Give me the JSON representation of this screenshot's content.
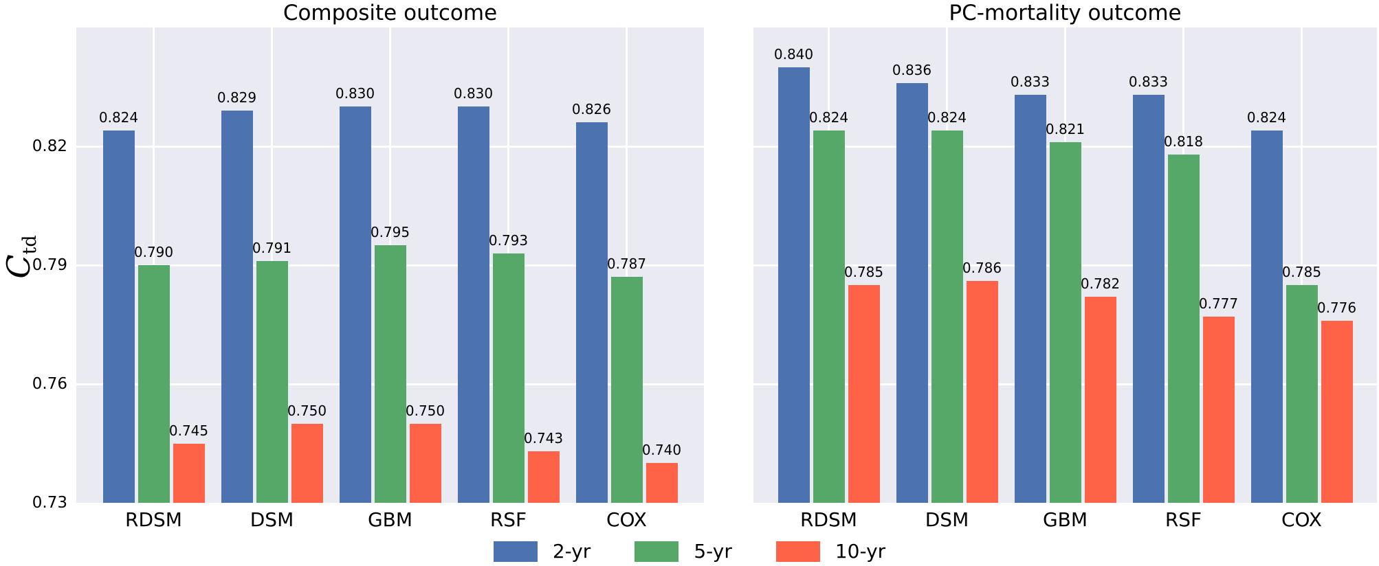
{
  "figure_title": "",
  "colors": {
    "background": "#ffffff",
    "plot_background": "#eaeaf2",
    "gridline": "#ffffff",
    "text": "#000000",
    "series_2yr": "#4c72b0",
    "series_5yr": "#55a868",
    "series_10yr": "#ff6347"
  },
  "ylabel": {
    "text": "C_td",
    "main": "C",
    "sub": "td"
  },
  "legend": {
    "position": "bottom-center",
    "items": [
      {
        "label": "2-yr",
        "color": "#4c72b0"
      },
      {
        "label": "5-yr",
        "color": "#55a868"
      },
      {
        "label": "10-yr",
        "color": "#ff6347"
      }
    ]
  },
  "chart_data": [
    {
      "type": "bar",
      "title": "Composite outcome",
      "xlabel": "",
      "ylabel": "C_td",
      "categories": [
        "RDSM",
        "DSM",
        "GBM",
        "RSF",
        "COX"
      ],
      "series": [
        {
          "name": "2-yr",
          "color": "#4c72b0",
          "values": [
            0.824,
            0.829,
            0.83,
            0.83,
            0.826
          ]
        },
        {
          "name": "5-yr",
          "color": "#55a868",
          "values": [
            0.79,
            0.791,
            0.795,
            0.793,
            0.787
          ]
        },
        {
          "name": "10-yr",
          "color": "#ff6347",
          "values": [
            0.745,
            0.75,
            0.75,
            0.743,
            0.74
          ]
        }
      ],
      "ylim": [
        0.73,
        0.85
      ],
      "yticks": [
        0.73,
        0.76,
        0.79,
        0.82
      ],
      "ytick_labels_visible": true,
      "grid": true,
      "value_labels": true,
      "value_label_decimals": 3,
      "legend_position": "figure-bottom"
    },
    {
      "type": "bar",
      "title": "PC-mortality outcome",
      "xlabel": "",
      "ylabel": "",
      "categories": [
        "RDSM",
        "DSM",
        "GBM",
        "RSF",
        "COX"
      ],
      "series": [
        {
          "name": "2-yr",
          "color": "#4c72b0",
          "values": [
            0.84,
            0.836,
            0.833,
            0.833,
            0.824
          ]
        },
        {
          "name": "5-yr",
          "color": "#55a868",
          "values": [
            0.824,
            0.824,
            0.821,
            0.818,
            0.785
          ]
        },
        {
          "name": "10-yr",
          "color": "#ff6347",
          "values": [
            0.785,
            0.786,
            0.782,
            0.777,
            0.776
          ]
        }
      ],
      "ylim": [
        0.73,
        0.85
      ],
      "yticks": [
        0.73,
        0.76,
        0.79,
        0.82
      ],
      "ytick_labels_visible": false,
      "grid": true,
      "value_labels": true,
      "value_label_decimals": 3,
      "legend_position": "figure-bottom"
    }
  ]
}
